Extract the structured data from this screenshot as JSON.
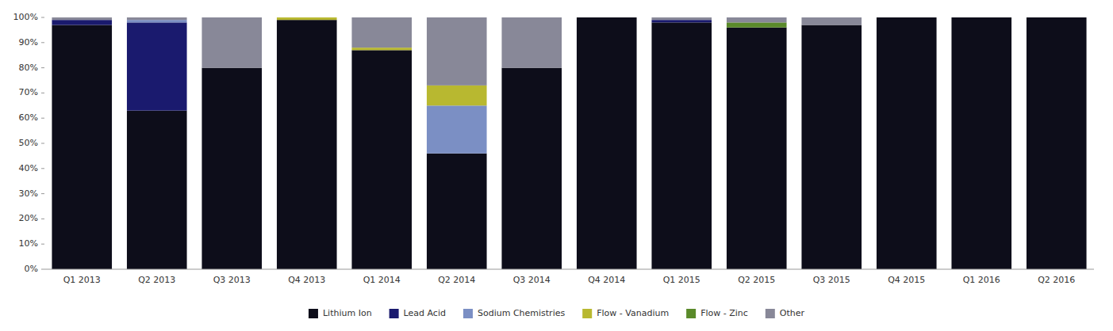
{
  "chart_data": {
    "type": "bar",
    "stacked": true,
    "categories": [
      "Q1 2013",
      "Q2 2013",
      "Q3 2013",
      "Q4 2013",
      "Q1 2014",
      "Q2 2014",
      "Q3 2014",
      "Q4 2014",
      "Q1 2015",
      "Q2 2015",
      "Q3 2015",
      "Q4 2015",
      "Q1 2016",
      "Q2 2016"
    ],
    "series": [
      {
        "name": "Lithium Ion",
        "color": "#0d0d1a",
        "values": [
          97,
          63,
          80,
          99,
          87,
          46,
          80,
          100,
          98,
          96,
          97,
          100,
          100,
          100
        ]
      },
      {
        "name": "Lead Acid",
        "color": "#1a1a6e",
        "values": [
          2,
          35,
          0,
          0,
          0,
          0,
          0,
          0,
          1,
          0,
          0,
          0,
          0,
          0
        ]
      },
      {
        "name": "Sodium Chemistries",
        "color": "#7b8fc4",
        "values": [
          0,
          1,
          0,
          0,
          0,
          19,
          0,
          0,
          0,
          0,
          0,
          0,
          0,
          0
        ]
      },
      {
        "name": "Flow - Vanadium",
        "color": "#b8b830",
        "values": [
          0,
          0,
          0,
          1,
          1,
          8,
          0,
          0,
          0,
          0,
          0,
          0,
          0,
          0
        ]
      },
      {
        "name": "Flow - Zinc",
        "color": "#5a8a2a",
        "values": [
          0,
          0,
          0,
          0,
          0,
          0,
          0,
          0,
          0,
          2,
          0,
          0,
          0,
          0
        ]
      },
      {
        "name": "Other",
        "color": "#888898",
        "values": [
          1,
          1,
          20,
          0,
          12,
          27,
          20,
          0,
          1,
          2,
          3,
          0,
          0,
          0
        ]
      }
    ],
    "ylim": [
      0,
      100
    ],
    "yticks": [
      {
        "value": 0,
        "label": "0%"
      },
      {
        "value": 10,
        "label": "10%"
      },
      {
        "value": 20,
        "label": "20%"
      },
      {
        "value": 30,
        "label": "30%"
      },
      {
        "value": 40,
        "label": "40%"
      },
      {
        "value": 50,
        "label": "50%"
      },
      {
        "value": 60,
        "label": "60%"
      },
      {
        "value": 70,
        "label": "70%"
      },
      {
        "value": 80,
        "label": "80%"
      },
      {
        "value": 90,
        "label": "90%"
      },
      {
        "value": 100,
        "label": "100%"
      }
    ],
    "grid": false,
    "legend": "bottom"
  }
}
